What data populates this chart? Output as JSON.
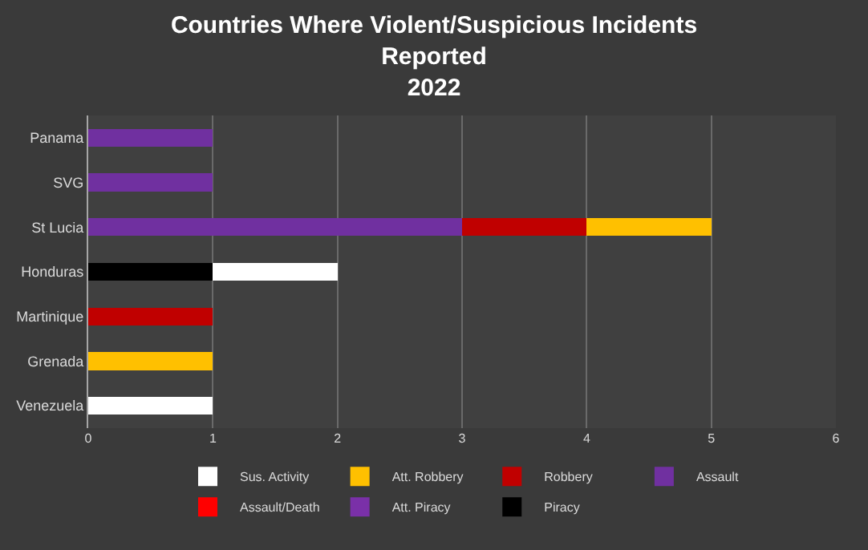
{
  "chart_data": {
    "type": "bar",
    "orientation": "horizontal",
    "stacked": true,
    "title": "Countries Where Violent/Suspicious Incidents Reported",
    "subtitle": "2022",
    "categories": [
      "Panama",
      "SVG",
      "St Lucia",
      "Honduras",
      "Martinique",
      "Grenada",
      "Venezuela"
    ],
    "series": [
      {
        "name": "Piracy",
        "color": "#000000",
        "values": [
          null,
          null,
          null,
          1,
          null,
          null,
          null
        ]
      },
      {
        "name": "Att. Piracy",
        "color": "#7a30a8",
        "values": [
          null,
          null,
          null,
          null,
          null,
          null,
          null
        ]
      },
      {
        "name": "Assault/Death",
        "color": "#ff0000",
        "values": [
          null,
          null,
          null,
          null,
          null,
          null,
          null
        ]
      },
      {
        "name": "Assault",
        "color": "#7030a0",
        "values": [
          1,
          1,
          3,
          null,
          null,
          null,
          null
        ]
      },
      {
        "name": "Robbery",
        "color": "#c00000",
        "values": [
          null,
          null,
          1,
          null,
          1,
          null,
          null
        ]
      },
      {
        "name": "Att. Robbery",
        "color": "#ffc000",
        "values": [
          null,
          null,
          1,
          null,
          null,
          1,
          null
        ]
      },
      {
        "name": "Sus. Activity",
        "color": "#ffffff",
        "values": [
          null,
          null,
          null,
          1,
          null,
          null,
          1
        ]
      }
    ],
    "xlim": [
      0,
      6
    ],
    "xticks": [
      0,
      1,
      2,
      3,
      4,
      5,
      6
    ],
    "grid": "x",
    "legend": "bottom"
  }
}
